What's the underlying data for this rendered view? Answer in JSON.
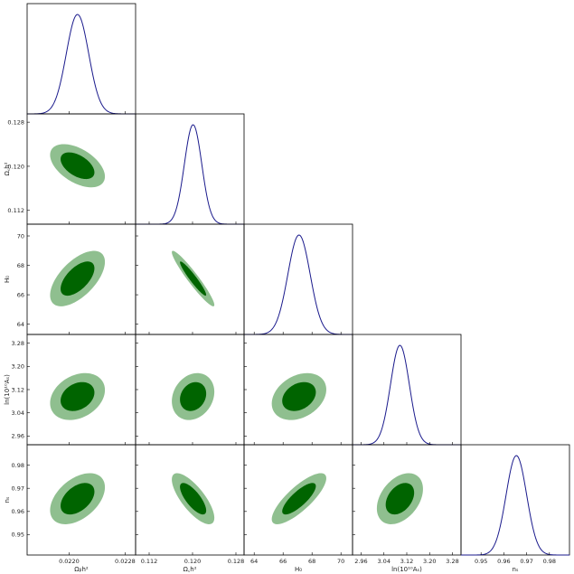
{
  "chart_data": {
    "type": "triangle",
    "params": [
      {
        "key": "ombh2",
        "label": "Ωᵦh²",
        "mean": 0.02212,
        "sd": 0.00016,
        "range": [
          0.0214,
          0.02295
        ],
        "ticks": [
          0.022,
          0.0228
        ],
        "tick_labels": [
          "0.0220",
          "0.0228"
        ]
      },
      {
        "key": "omch2",
        "label": "Ω꜀h²",
        "mean": 0.1201,
        "sd": 0.0016,
        "range": [
          0.1095,
          0.1295
        ],
        "ticks": [
          0.112,
          0.12,
          0.128
        ],
        "tick_labels": [
          "0.112",
          "0.120",
          "0.128"
        ]
      },
      {
        "key": "H0",
        "label": "H₀",
        "mean": 67.1,
        "sd": 0.77,
        "range": [
          63.3,
          70.8
        ],
        "ticks": [
          64,
          66,
          68,
          70
        ],
        "tick_labels": [
          "64",
          "66",
          "68",
          "70"
        ]
      },
      {
        "key": "logA",
        "label": "ln(10¹⁰Aₛ)",
        "mean": 3.096,
        "sd": 0.033,
        "range": [
          2.93,
          3.31
        ],
        "ticks": [
          2.96,
          3.04,
          3.12,
          3.2,
          3.28
        ],
        "tick_labels": [
          "2.96",
          "3.04",
          "3.12",
          "3.20",
          "3.28"
        ]
      },
      {
        "key": "ns",
        "label": "nₛ",
        "mean": 0.9655,
        "sd": 0.0045,
        "range": [
          0.9412,
          0.9888
        ],
        "ticks": [
          0.95,
          0.96,
          0.97,
          0.98
        ],
        "tick_labels": [
          "0.95",
          "0.96",
          "0.97",
          "0.98"
        ]
      }
    ],
    "correlations": [
      [
        1,
        -0.5,
        0.6,
        0.28,
        0.45
      ],
      [
        -0.5,
        1,
        -0.95,
        0.2,
        -0.75
      ],
      [
        0.6,
        -0.95,
        1,
        0.3,
        0.8
      ],
      [
        0.28,
        0.2,
        0.3,
        1,
        0.38
      ],
      [
        0.45,
        -0.75,
        0.8,
        0.38,
        1
      ]
    ],
    "contour_levels": [
      "68%",
      "95%"
    ],
    "colors": {
      "inner": "#006400",
      "outer": "#8fbf8f",
      "line": "#1a1a8c"
    }
  }
}
